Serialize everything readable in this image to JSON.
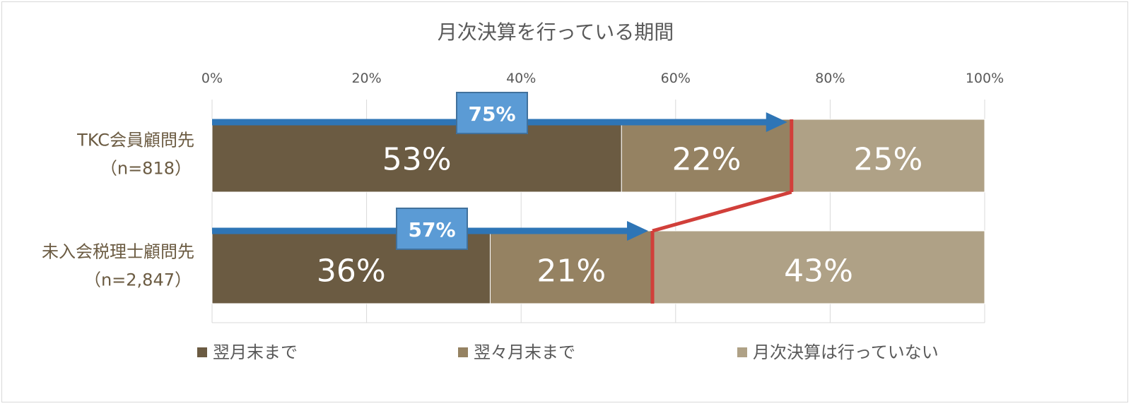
{
  "chart_data": {
    "type": "bar",
    "stacked": true,
    "orientation": "horizontal",
    "title": "月次決算を行っている期間",
    "xlim": [
      0,
      100
    ],
    "x_ticks": [
      "0%",
      "20%",
      "40%",
      "60%",
      "80%",
      "100%"
    ],
    "grid": true,
    "legend_position": "bottom",
    "categories": [
      {
        "name": "TKC会員顧問先",
        "sub": "（n=818）"
      },
      {
        "name": "未入会税理士顧問先",
        "sub": "（n=2,847）"
      }
    ],
    "series": [
      {
        "name": "翌月末まで",
        "values": [
          53,
          36
        ],
        "labels": [
          "53%",
          "36%"
        ],
        "color": "#6b5b42"
      },
      {
        "name": "翌々月末まで",
        "values": [
          22,
          21
        ],
        "labels": [
          "22%",
          "21%"
        ],
        "color": "#958262"
      },
      {
        "name": "月次決算は行っていない",
        "values": [
          25,
          43
        ],
        "labels": [
          "25%",
          "43%"
        ],
        "color": "#afa186"
      }
    ],
    "annotations": [
      {
        "value": 75,
        "label": "75%"
      },
      {
        "value": 57,
        "label": "57%"
      }
    ],
    "annotation_colors": {
      "arrow": "#2e75b6",
      "callout": "#5b9bd5",
      "connector": "#d13f3a"
    }
  }
}
